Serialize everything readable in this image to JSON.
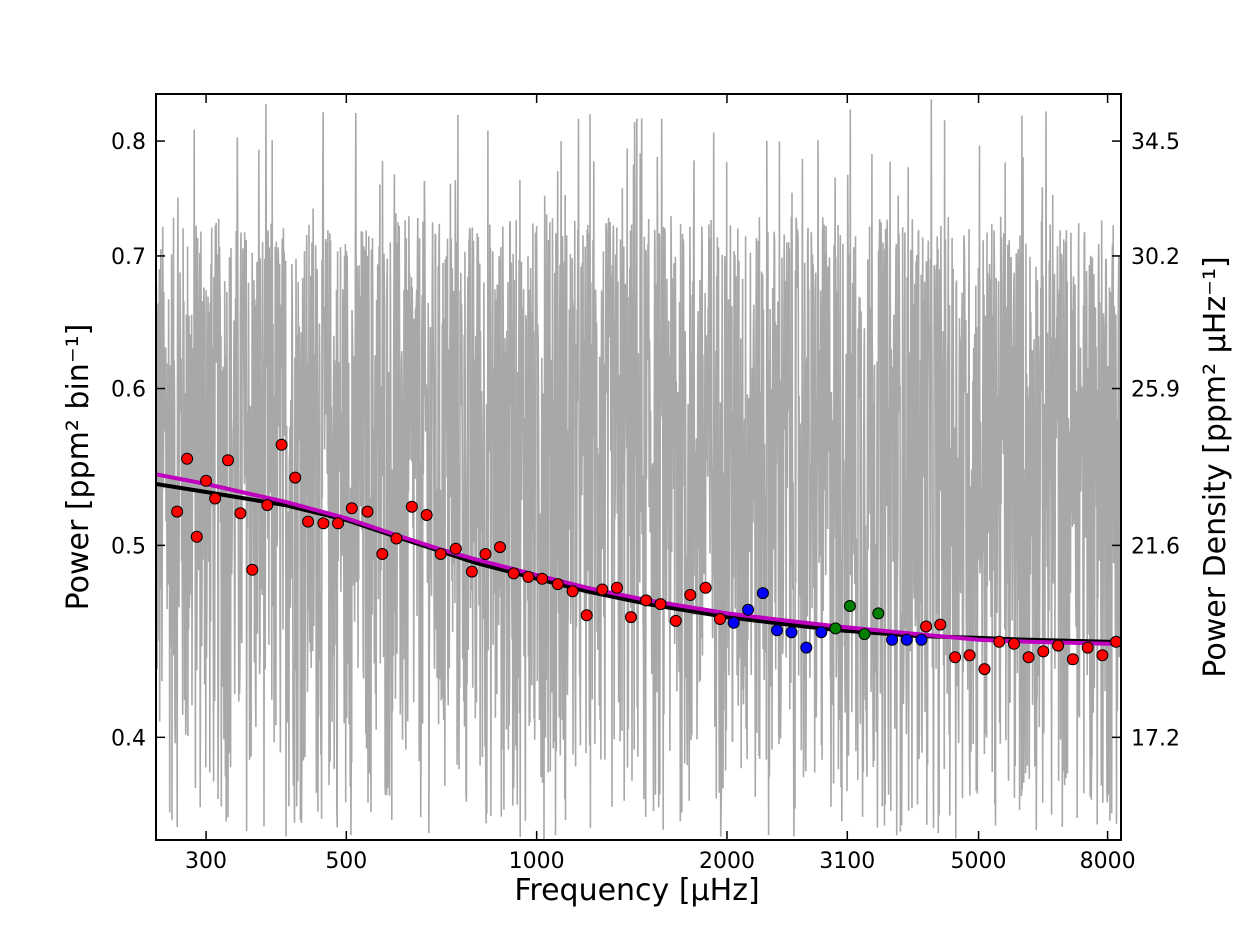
{
  "chart_data": {
    "type": "scatter",
    "x_scale": "log",
    "y_scale": "log",
    "xlim": [
      250,
      8400
    ],
    "ylim": [
      0.355,
      0.845
    ],
    "xlabel": "Frequency [μHz]",
    "ylabel": "Power [ppm² bin⁻¹]",
    "y2label": "Power Density [ppm² μHz⁻¹]",
    "x_ticks": [
      300,
      500,
      1000,
      2000,
      3100,
      5000,
      8000
    ],
    "x_tick_labels": [
      "300",
      "500",
      "1000",
      "2000",
      "3100",
      "5000",
      "8000"
    ],
    "y_ticks": [
      0.4,
      0.5,
      0.6,
      0.7,
      0.8
    ],
    "y_tick_labels": [
      "0.4",
      "0.5",
      "0.6",
      "0.7",
      "0.8"
    ],
    "y2_ticks": [
      0.4,
      0.5,
      0.6,
      0.7,
      0.8
    ],
    "y2_tick_labels": [
      "17.2",
      "21.6",
      "25.9",
      "30.2",
      "34.5"
    ],
    "grid": false,
    "colors": {
      "spectrum": "#a8a8a8",
      "fit_black": "#000000",
      "fit_magenta": "#bf00bf",
      "points_red": "#ff0000",
      "points_blue": "#0000ff",
      "points_green": "#007f00"
    },
    "series": [
      {
        "kind": "raw-spectrum",
        "values_note": "noisy power spectrum spanning roughly 0.36–0.84",
        "x_range": [
          250,
          8400
        ],
        "y_range": [
          0.355,
          0.84
        ]
      },
      {
        "kind": "fit-line",
        "color": "#000000",
        "x": [
          250,
          300,
          400,
          500,
          600,
          700,
          800,
          1000,
          1200,
          1500,
          2000,
          2500,
          3000,
          4000,
          5000,
          6000,
          8000,
          8400
        ],
        "y": [
          0.537,
          0.532,
          0.524,
          0.515,
          0.505,
          0.497,
          0.49,
          0.481,
          0.474,
          0.467,
          0.46,
          0.456,
          0.453,
          0.45,
          0.449,
          0.448,
          0.447,
          0.447
        ]
      },
      {
        "kind": "fit-line",
        "color": "#bf00bf",
        "x": [
          250,
          300,
          400,
          500,
          600,
          700,
          800,
          1000,
          1200,
          1500,
          2000,
          2500,
          3000,
          4000,
          5000,
          6000,
          8000,
          8400
        ],
        "y": [
          0.543,
          0.537,
          0.526,
          0.516,
          0.506,
          0.498,
          0.492,
          0.483,
          0.476,
          0.469,
          0.462,
          0.458,
          0.455,
          0.451,
          0.448,
          0.447,
          0.446,
          0.446
        ]
      },
      {
        "kind": "binned-points",
        "color": "#ff0000",
        "x": [
          270,
          280,
          290,
          300,
          310,
          325,
          340,
          355,
          375,
          395,
          415,
          435,
          460,
          485,
          510,
          540,
          570,
          600,
          635,
          670,
          705,
          745,
          790,
          830,
          875,
          920,
          970,
          1020,
          1080,
          1140,
          1200,
          1270,
          1340,
          1410,
          1490,
          1570,
          1660,
          1750,
          1850,
          1950,
          4130,
          4350,
          4590,
          4840,
          5110,
          5390,
          5690,
          6000,
          6330,
          6680,
          7050,
          7440,
          7850,
          8250
        ],
        "y": [
          0.52,
          0.553,
          0.505,
          0.539,
          0.528,
          0.552,
          0.519,
          0.486,
          0.524,
          0.562,
          0.541,
          0.514,
          0.513,
          0.513,
          0.522,
          0.52,
          0.495,
          0.504,
          0.523,
          0.518,
          0.495,
          0.498,
          0.485,
          0.495,
          0.499,
          0.484,
          0.482,
          0.481,
          0.478,
          0.474,
          0.461,
          0.475,
          0.476,
          0.46,
          0.469,
          0.467,
          0.458,
          0.472,
          0.476,
          0.459,
          0.455,
          0.456,
          0.439,
          0.44,
          0.433,
          0.447,
          0.446,
          0.439,
          0.442,
          0.445,
          0.438,
          0.444,
          0.44,
          0.447
        ]
      },
      {
        "kind": "binned-points",
        "color": "#0000ff",
        "x": [
          2050,
          2160,
          2280,
          2400,
          2530,
          2670,
          2820,
          3650,
          3850,
          4060
        ],
        "y": [
          0.457,
          0.464,
          0.473,
          0.453,
          0.452,
          0.444,
          0.452,
          0.448,
          0.448,
          0.448
        ]
      },
      {
        "kind": "binned-points",
        "color": "#007f00",
        "x": [
          2970,
          3130,
          3300,
          3470
        ],
        "y": [
          0.454,
          0.466,
          0.451,
          0.462
        ]
      }
    ]
  }
}
